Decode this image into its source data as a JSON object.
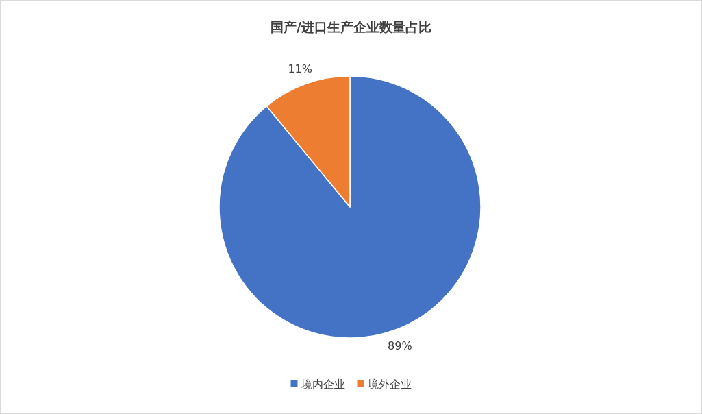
{
  "chart_data": {
    "type": "pie",
    "title": "国产/进口生产企业数量占比",
    "categories": [
      "境内企业",
      "境外企业"
    ],
    "values": [
      89,
      11
    ],
    "colors": [
      "#4472c4",
      "#ed7d31"
    ],
    "value_labels": [
      "89%",
      "11%"
    ],
    "legend": "bottom"
  }
}
